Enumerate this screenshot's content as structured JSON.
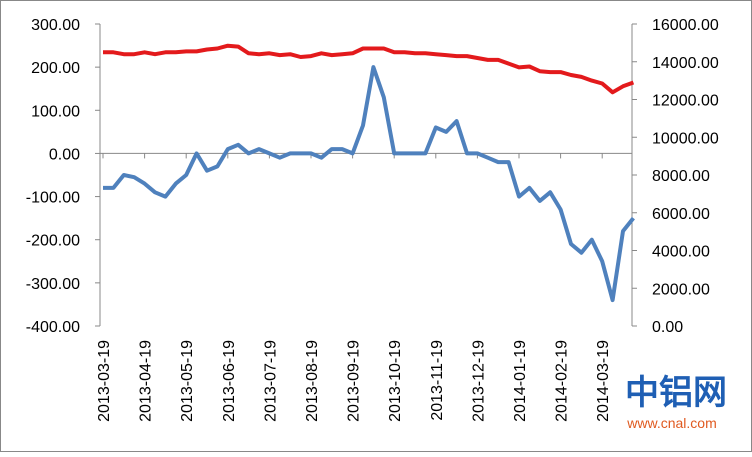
{
  "chart_data": {
    "type": "line",
    "categories": [
      "2013-03-19",
      null,
      null,
      null,
      "2013-04-19",
      null,
      null,
      null,
      "2013-05-19",
      null,
      null,
      null,
      "2013-06-19",
      null,
      null,
      null,
      "2013-07-19",
      null,
      null,
      null,
      "2013-08-19",
      null,
      null,
      null,
      "2013-09-19",
      null,
      null,
      null,
      "2013-10-19",
      null,
      null,
      null,
      "2013-11-19",
      null,
      null,
      null,
      "2013-12-19",
      null,
      null,
      null,
      "2014-01-19",
      null,
      null,
      null,
      "2014-02-19",
      null,
      null,
      null,
      "2014-03-19",
      null,
      null,
      null
    ],
    "series": [
      {
        "color": "#4f81bd",
        "values": [
          -80,
          -80,
          -50,
          -55,
          -70,
          -90,
          -100,
          -70,
          -50,
          0,
          -40,
          -30,
          10,
          20,
          0,
          10,
          0,
          -10,
          0,
          0,
          0,
          -10,
          10,
          10,
          0,
          65,
          200,
          130,
          0,
          0,
          0,
          0,
          60,
          50,
          75,
          0,
          0,
          -10,
          -20,
          -20,
          -100,
          -80,
          -110,
          -90,
          -130,
          -210,
          -230,
          -200,
          -250,
          -340,
          -180,
          -150
        ]
      },
      {
        "color": "#e31a1c",
        "axis": "y2",
        "values": [
          14500,
          14500,
          14400,
          14400,
          14500,
          14400,
          14500,
          14500,
          14550,
          14550,
          14650,
          14700,
          14850,
          14800,
          14450,
          14400,
          14450,
          14350,
          14400,
          14250,
          14300,
          14450,
          14350,
          14400,
          14450,
          14700,
          14700,
          14700,
          14500,
          14500,
          14450,
          14450,
          14400,
          14350,
          14300,
          14300,
          14200,
          14100,
          14100,
          13900,
          13700,
          13750,
          13500,
          13450,
          13450,
          13300,
          13200,
          13000,
          12850,
          12380,
          12700,
          12900
        ]
      }
    ],
    "ylim": [
      -400,
      300
    ],
    "yticks": [
      {
        "value": -400,
        "label": "-400.00"
      },
      {
        "value": -300,
        "label": "-300.00"
      },
      {
        "value": -200,
        "label": "-200.00"
      },
      {
        "value": -100,
        "label": "-100.00"
      },
      {
        "value": 0,
        "label": "0.00"
      },
      {
        "value": 100,
        "label": "100.00"
      },
      {
        "value": 200,
        "label": "200.00"
      },
      {
        "value": 300,
        "label": "300.00"
      }
    ],
    "y2lim": [
      0,
      16000
    ],
    "y2ticks": [
      {
        "value": 0,
        "label": "0.00"
      },
      {
        "value": 2000,
        "label": "2000.00"
      },
      {
        "value": 4000,
        "label": "4000.00"
      },
      {
        "value": 6000,
        "label": "6000.00"
      },
      {
        "value": 8000,
        "label": "8000.00"
      },
      {
        "value": 10000,
        "label": "10000.00"
      },
      {
        "value": 12000,
        "label": "12000.00"
      },
      {
        "value": 14000,
        "label": "14000.00"
      },
      {
        "value": 16000,
        "label": "16000.00"
      }
    ],
    "watermark": "中铝网",
    "watermark_url": "www.cnal.com"
  }
}
